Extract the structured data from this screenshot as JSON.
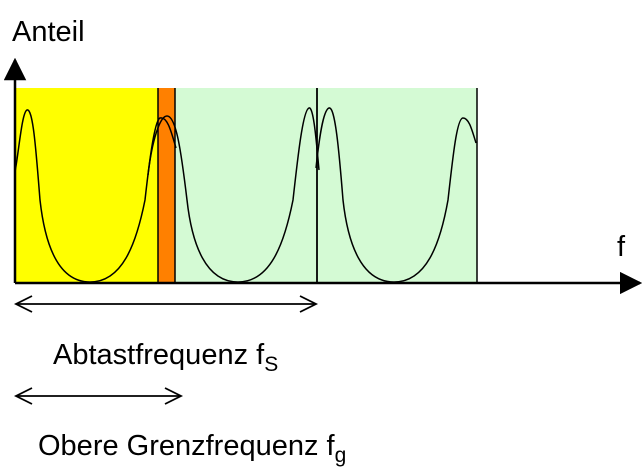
{
  "labels": {
    "y_axis": "Anteil",
    "x_axis": "f",
    "sampling_frequency_text": "Abtastfrequenz f",
    "sampling_frequency_subscript": "S",
    "upper_cutoff_text": "Obere Grenzfrequenz f",
    "upper_cutoff_subscript": "g"
  },
  "colors": {
    "baseband_region": "#ffff00",
    "aliasing_overlap": "#ff8000",
    "image_spectra_region": "#d4fad4",
    "lines": "#000000"
  }
}
